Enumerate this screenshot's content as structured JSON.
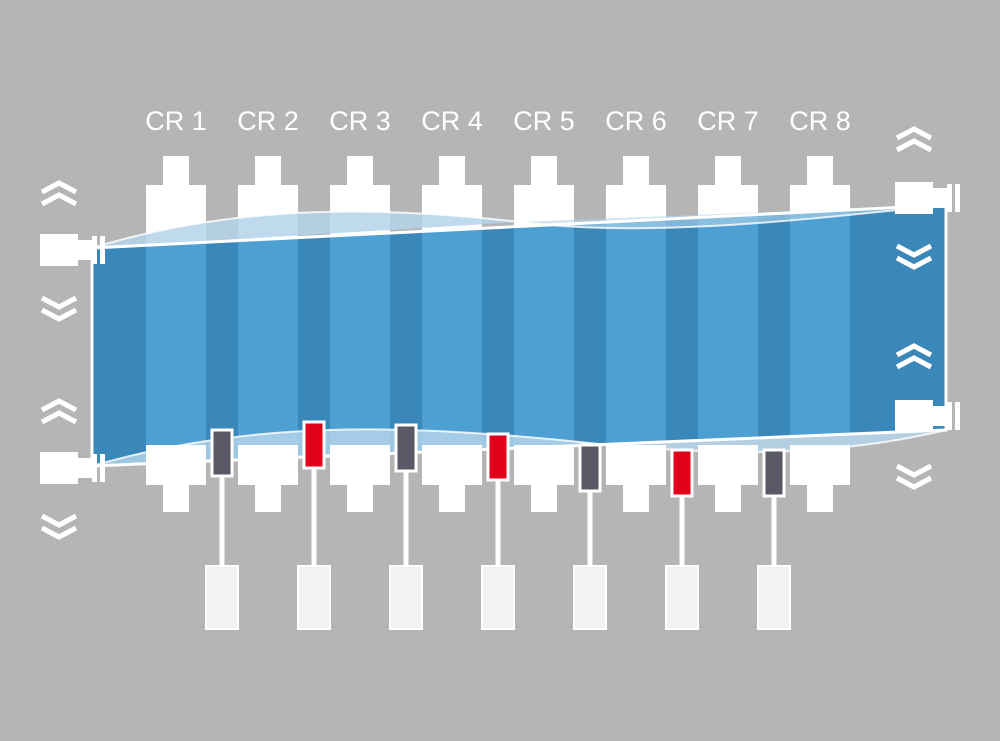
{
  "labels": [
    "CR 1",
    "CR 2",
    "CR 3",
    "CR 4",
    "CR 5",
    "CR 6",
    "CR 7",
    "CR 8"
  ]
}
